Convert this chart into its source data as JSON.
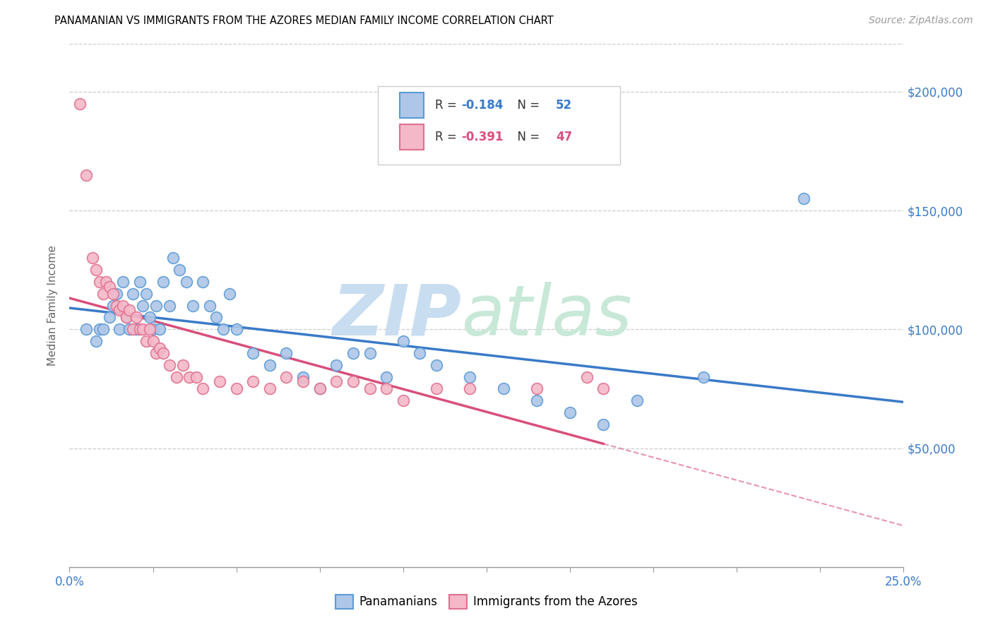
{
  "title": "PANAMANIAN VS IMMIGRANTS FROM THE AZORES MEDIAN FAMILY INCOME CORRELATION CHART",
  "source": "Source: ZipAtlas.com",
  "ylabel": "Median Family Income",
  "ytick_labels": [
    "$50,000",
    "$100,000",
    "$150,000",
    "$200,000"
  ],
  "ytick_values": [
    50000,
    100000,
    150000,
    200000
  ],
  "ylim": [
    0,
    220000
  ],
  "xlim": [
    0.0,
    0.25
  ],
  "legend_blue_label": "Panamanians",
  "legend_pink_label": "Immigrants from the Azores",
  "R_blue": -0.184,
  "N_blue": 52,
  "R_pink": -0.391,
  "N_pink": 47,
  "blue_scatter_color": "#aec6e8",
  "blue_edge_color": "#5b9bd5",
  "pink_scatter_color": "#f4b8c8",
  "pink_edge_color": "#e07090",
  "blue_line_color": "#3a7ac8",
  "pink_line_color": "#d94f7a",
  "watermark_zip_color": "#c8ddf0",
  "watermark_atlas_color": "#c8e8d8",
  "blue_scatter_x": [
    0.005,
    0.008,
    0.009,
    0.01,
    0.012,
    0.013,
    0.014,
    0.015,
    0.016,
    0.017,
    0.018,
    0.019,
    0.02,
    0.021,
    0.022,
    0.023,
    0.024,
    0.025,
    0.026,
    0.027,
    0.028,
    0.03,
    0.031,
    0.033,
    0.035,
    0.037,
    0.04,
    0.042,
    0.044,
    0.046,
    0.048,
    0.05,
    0.055,
    0.06,
    0.065,
    0.07,
    0.075,
    0.08,
    0.085,
    0.09,
    0.095,
    0.1,
    0.105,
    0.11,
    0.12,
    0.13,
    0.14,
    0.15,
    0.16,
    0.17,
    0.19,
    0.22
  ],
  "blue_scatter_y": [
    100000,
    95000,
    100000,
    100000,
    105000,
    110000,
    115000,
    100000,
    120000,
    105000,
    100000,
    115000,
    100000,
    120000,
    110000,
    115000,
    105000,
    100000,
    110000,
    100000,
    120000,
    110000,
    130000,
    125000,
    120000,
    110000,
    120000,
    110000,
    105000,
    100000,
    115000,
    100000,
    90000,
    85000,
    90000,
    80000,
    75000,
    85000,
    90000,
    90000,
    80000,
    95000,
    90000,
    85000,
    80000,
    75000,
    70000,
    65000,
    60000,
    70000,
    80000,
    155000
  ],
  "pink_scatter_x": [
    0.003,
    0.005,
    0.007,
    0.008,
    0.009,
    0.01,
    0.011,
    0.012,
    0.013,
    0.014,
    0.015,
    0.016,
    0.017,
    0.018,
    0.019,
    0.02,
    0.021,
    0.022,
    0.023,
    0.024,
    0.025,
    0.026,
    0.027,
    0.028,
    0.03,
    0.032,
    0.034,
    0.036,
    0.038,
    0.04,
    0.045,
    0.05,
    0.055,
    0.06,
    0.065,
    0.07,
    0.075,
    0.08,
    0.085,
    0.09,
    0.095,
    0.1,
    0.11,
    0.12,
    0.14,
    0.155,
    0.16
  ],
  "pink_scatter_y": [
    195000,
    165000,
    130000,
    125000,
    120000,
    115000,
    120000,
    118000,
    115000,
    110000,
    108000,
    110000,
    105000,
    108000,
    100000,
    105000,
    100000,
    100000,
    95000,
    100000,
    95000,
    90000,
    92000,
    90000,
    85000,
    80000,
    85000,
    80000,
    80000,
    75000,
    78000,
    75000,
    78000,
    75000,
    80000,
    78000,
    75000,
    78000,
    78000,
    75000,
    75000,
    70000,
    75000,
    75000,
    75000,
    80000,
    75000
  ]
}
